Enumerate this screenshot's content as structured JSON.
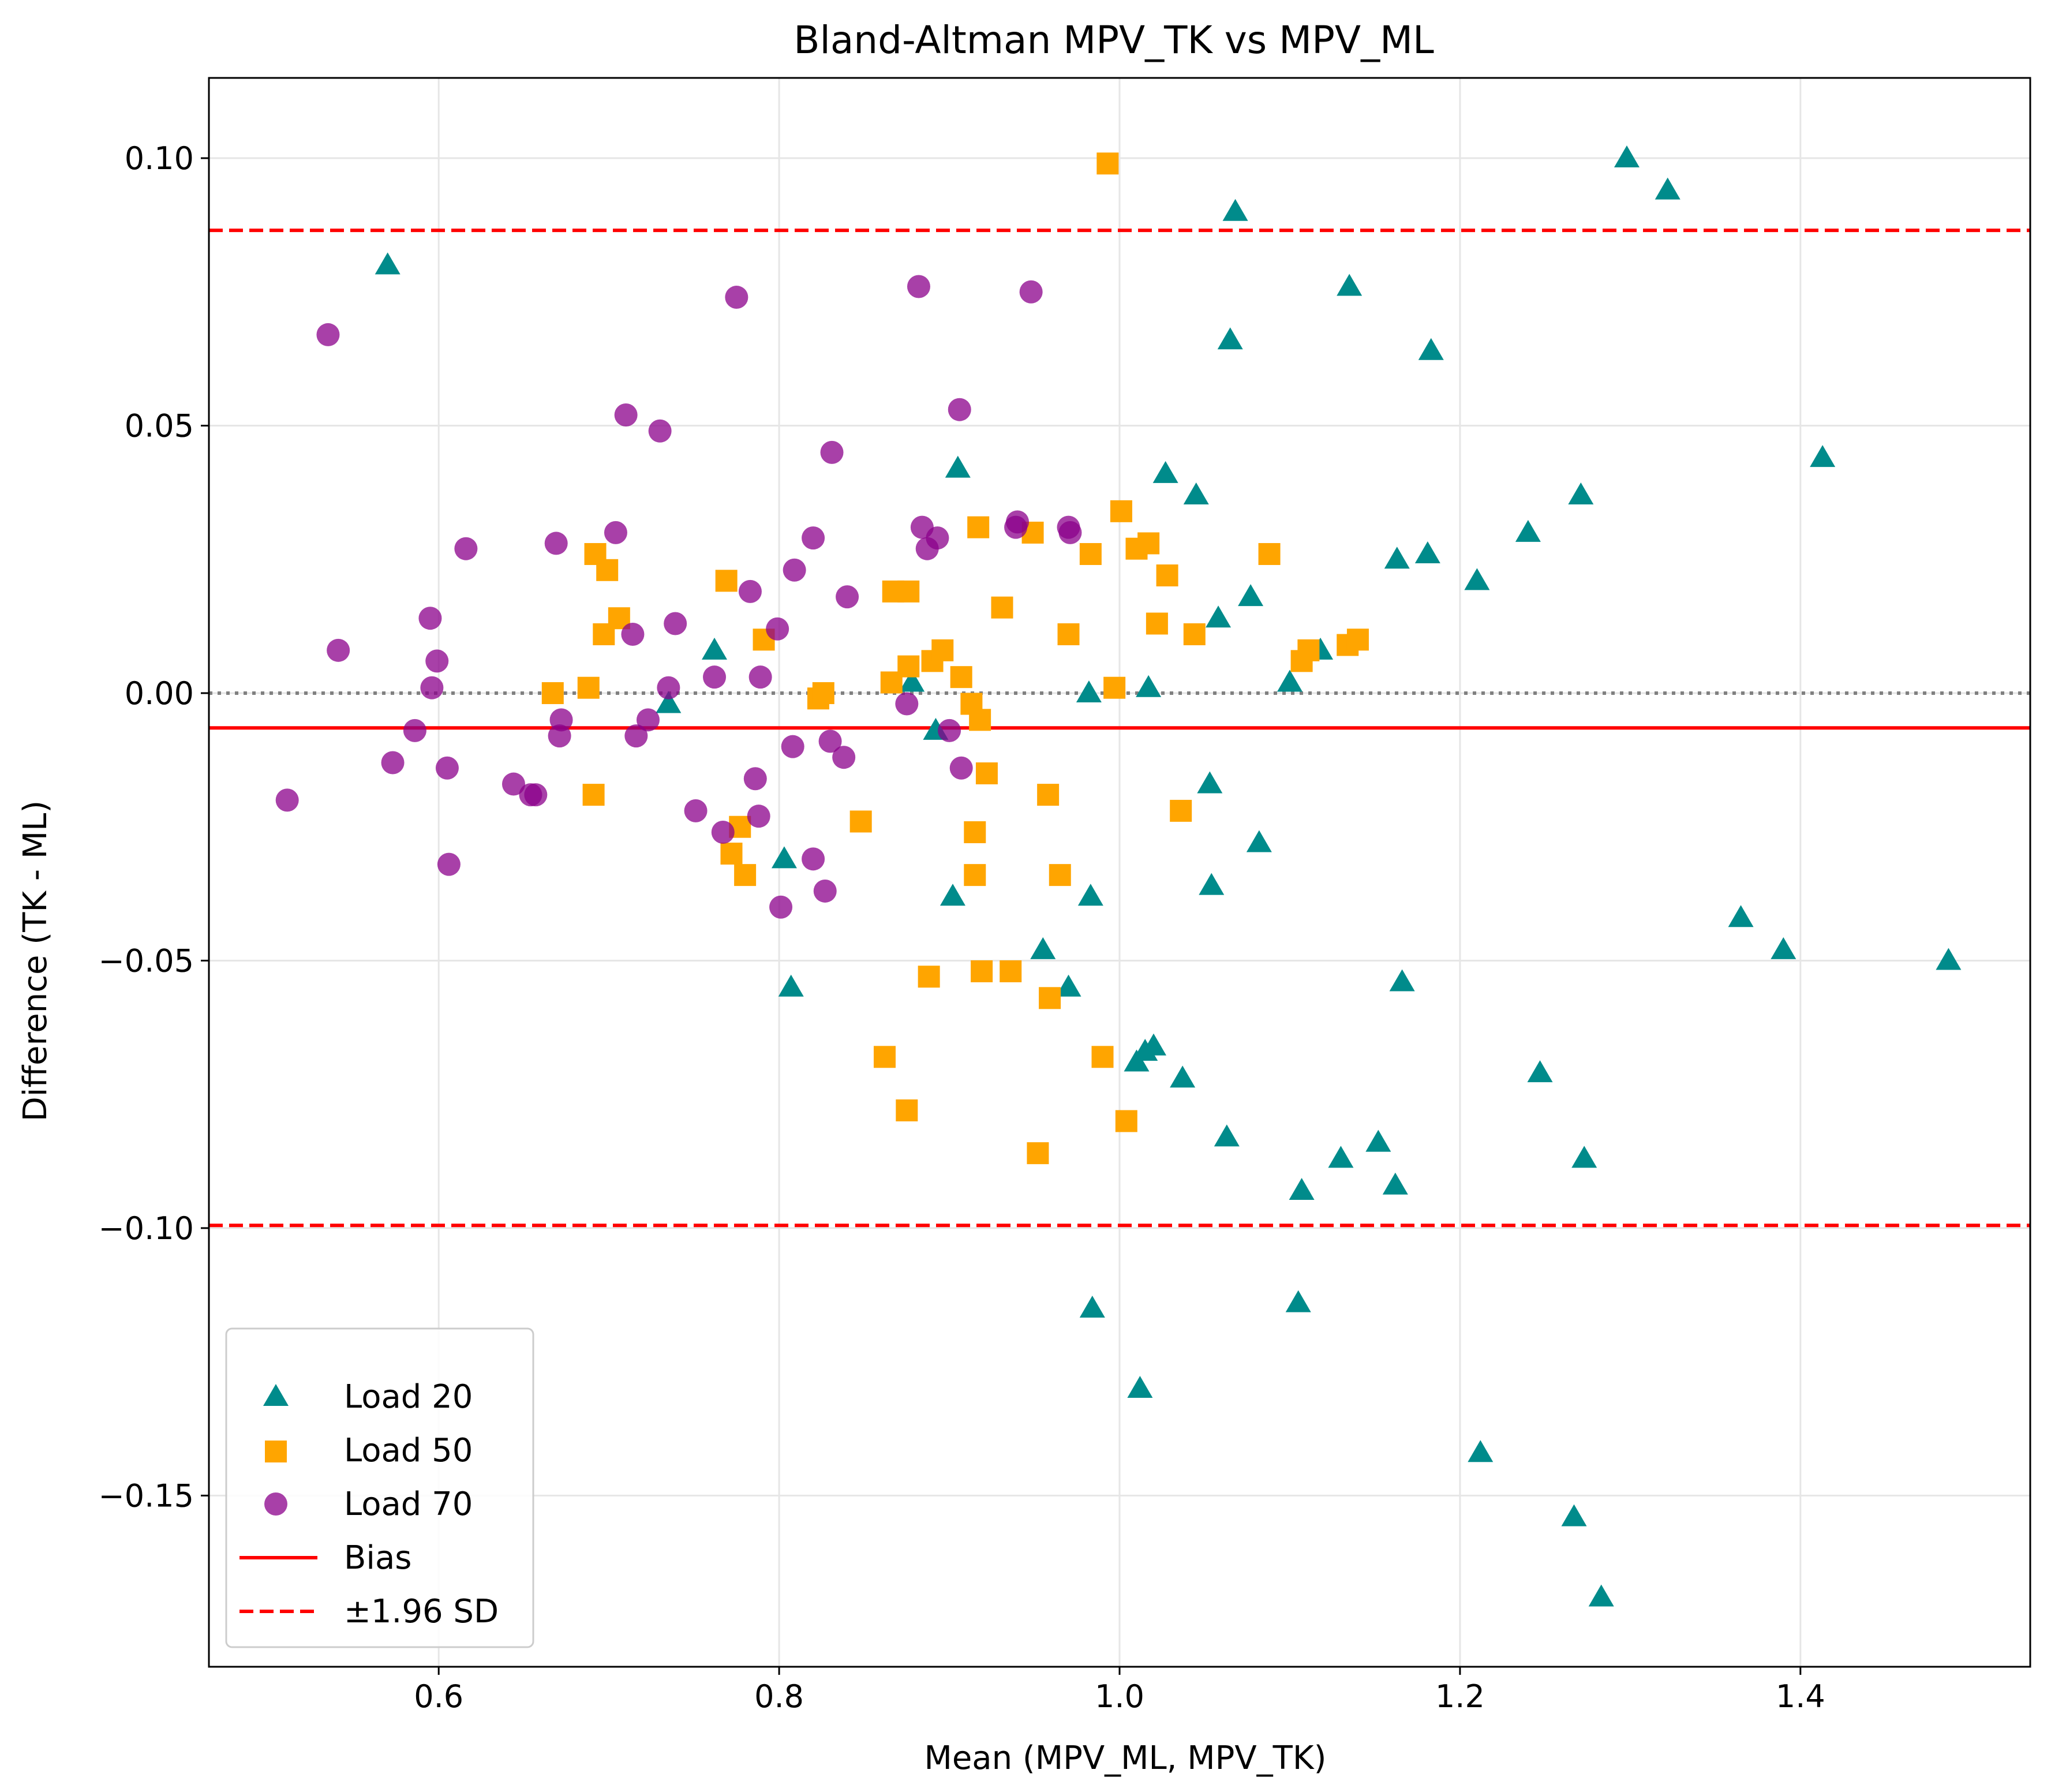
{
  "chart_data": {
    "type": "scatter",
    "title": "Bland-Altman MPV_TK vs MPV_ML",
    "xlabel": "Mean (MPV_ML, MPV_TK)",
    "ylabel": "Difference (TK - ML)",
    "xlim": [
      0.465,
      1.535
    ],
    "ylim": [
      -0.182,
      0.115
    ],
    "xticks": [
      0.6,
      0.8,
      1.0,
      1.2,
      1.4
    ],
    "xtick_labels": [
      "0.6",
      "0.8",
      "1.0",
      "1.2",
      "1.4"
    ],
    "yticks": [
      0.1,
      0.05,
      0.0,
      -0.05,
      -0.1,
      -0.15
    ],
    "ytick_labels": [
      "0.10",
      "0.05",
      "0.00",
      "−0.05",
      "−0.10",
      "−0.15"
    ],
    "grid": true,
    "legend_position": "lower-left",
    "zero_line": 0.0,
    "bias": -0.0065,
    "loa_upper": 0.0865,
    "loa_lower": -0.0995,
    "legend": [
      "Load 20",
      "Load 50",
      "Load 70",
      "Bias",
      "±1.96 SD"
    ],
    "colors": {
      "load20": "#008b8b",
      "load50": "#ffa500",
      "load70": "#8b008b",
      "bias": "#ff0000",
      "zero": "#808080"
    },
    "series": [
      {
        "name": "Load 20",
        "marker": "triangle",
        "points": [
          [
            0.57,
            0.08
          ],
          [
            0.735,
            -0.002
          ],
          [
            0.762,
            0.008
          ],
          [
            0.803,
            -0.031
          ],
          [
            0.807,
            -0.055
          ],
          [
            0.878,
            0.002
          ],
          [
            0.892,
            -0.007
          ],
          [
            0.902,
            -0.038
          ],
          [
            0.905,
            0.042
          ],
          [
            0.955,
            -0.048
          ],
          [
            0.97,
            -0.055
          ],
          [
            0.982,
            0.0
          ],
          [
            0.983,
            -0.038
          ],
          [
            0.984,
            -0.115
          ],
          [
            1.01,
            -0.069
          ],
          [
            1.012,
            -0.13
          ],
          [
            1.015,
            -0.067
          ],
          [
            1.017,
            0.001
          ],
          [
            1.02,
            -0.066
          ],
          [
            1.027,
            0.041
          ],
          [
            1.037,
            -0.072
          ],
          [
            1.045,
            0.037
          ],
          [
            1.053,
            -0.017
          ],
          [
            1.054,
            -0.036
          ],
          [
            1.058,
            0.014
          ],
          [
            1.063,
            -0.083
          ],
          [
            1.065,
            0.066
          ],
          [
            1.068,
            0.09
          ],
          [
            1.077,
            0.018
          ],
          [
            1.082,
            -0.028
          ],
          [
            1.1,
            0.002
          ],
          [
            1.105,
            -0.114
          ],
          [
            1.107,
            -0.093
          ],
          [
            1.118,
            0.008
          ],
          [
            1.13,
            -0.087
          ],
          [
            1.135,
            0.076
          ],
          [
            1.152,
            -0.084
          ],
          [
            1.162,
            -0.092
          ],
          [
            1.163,
            0.025
          ],
          [
            1.166,
            -0.054
          ],
          [
            1.181,
            0.026
          ],
          [
            1.183,
            0.064
          ],
          [
            1.21,
            0.021
          ],
          [
            1.212,
            -0.142
          ],
          [
            1.24,
            0.03
          ],
          [
            1.247,
            -0.071
          ],
          [
            1.267,
            -0.154
          ],
          [
            1.271,
            0.037
          ],
          [
            1.273,
            -0.087
          ],
          [
            1.283,
            -0.169
          ],
          [
            1.298,
            0.1
          ],
          [
            1.322,
            0.094
          ],
          [
            1.365,
            -0.042
          ],
          [
            1.39,
            -0.048
          ],
          [
            1.413,
            0.044
          ],
          [
            1.487,
            -0.05
          ]
        ]
      },
      {
        "name": "Load 50",
        "marker": "square",
        "points": [
          [
            0.667,
            0.0
          ],
          [
            0.688,
            0.001
          ],
          [
            0.691,
            -0.019
          ],
          [
            0.692,
            0.026
          ],
          [
            0.697,
            0.011
          ],
          [
            0.699,
            0.023
          ],
          [
            0.706,
            0.014
          ],
          [
            0.769,
            0.021
          ],
          [
            0.772,
            -0.03
          ],
          [
            0.777,
            -0.025
          ],
          [
            0.78,
            -0.034
          ],
          [
            0.791,
            0.01
          ],
          [
            0.823,
            -0.001
          ],
          [
            0.826,
            0.0
          ],
          [
            0.848,
            -0.024
          ],
          [
            0.862,
            -0.068
          ],
          [
            0.866,
            0.002
          ],
          [
            0.867,
            0.019
          ],
          [
            0.875,
            -0.078
          ],
          [
            0.876,
            0.019
          ],
          [
            0.876,
            0.005
          ],
          [
            0.888,
            -0.053
          ],
          [
            0.89,
            0.006
          ],
          [
            0.896,
            0.008
          ],
          [
            0.907,
            0.003
          ],
          [
            0.913,
            -0.002
          ],
          [
            0.915,
            -0.026
          ],
          [
            0.915,
            -0.034
          ],
          [
            0.917,
            0.031
          ],
          [
            0.918,
            -0.005
          ],
          [
            0.919,
            -0.052
          ],
          [
            0.922,
            -0.015
          ],
          [
            0.931,
            0.016
          ],
          [
            0.936,
            -0.052
          ],
          [
            0.949,
            0.03
          ],
          [
            0.952,
            -0.086
          ],
          [
            0.958,
            -0.019
          ],
          [
            0.959,
            -0.057
          ],
          [
            0.965,
            -0.034
          ],
          [
            0.97,
            0.011
          ],
          [
            0.983,
            0.026
          ],
          [
            0.99,
            -0.068
          ],
          [
            0.993,
            0.099
          ],
          [
            0.997,
            0.001
          ],
          [
            1.001,
            0.034
          ],
          [
            1.004,
            -0.08
          ],
          [
            1.01,
            0.027
          ],
          [
            1.017,
            0.028
          ],
          [
            1.022,
            0.013
          ],
          [
            1.028,
            0.022
          ],
          [
            1.036,
            -0.022
          ],
          [
            1.044,
            0.011
          ],
          [
            1.088,
            0.026
          ],
          [
            1.107,
            0.006
          ],
          [
            1.111,
            0.008
          ],
          [
            1.134,
            0.009
          ],
          [
            1.14,
            0.01
          ]
        ]
      },
      {
        "name": "Load 70",
        "marker": "circle",
        "points": [
          [
            0.511,
            -0.02
          ],
          [
            0.535,
            0.067
          ],
          [
            0.541,
            0.008
          ],
          [
            0.573,
            -0.013
          ],
          [
            0.586,
            -0.007
          ],
          [
            0.595,
            0.014
          ],
          [
            0.596,
            0.001
          ],
          [
            0.599,
            0.006
          ],
          [
            0.605,
            -0.014
          ],
          [
            0.606,
            -0.032
          ],
          [
            0.616,
            0.027
          ],
          [
            0.644,
            -0.017
          ],
          [
            0.654,
            -0.019
          ],
          [
            0.657,
            -0.019
          ],
          [
            0.669,
            0.028
          ],
          [
            0.671,
            -0.008
          ],
          [
            0.672,
            -0.005
          ],
          [
            0.704,
            0.03
          ],
          [
            0.71,
            0.052
          ],
          [
            0.714,
            0.011
          ],
          [
            0.716,
            -0.008
          ],
          [
            0.723,
            -0.005
          ],
          [
            0.73,
            0.049
          ],
          [
            0.735,
            0.001
          ],
          [
            0.739,
            0.013
          ],
          [
            0.751,
            -0.022
          ],
          [
            0.762,
            0.003
          ],
          [
            0.767,
            -0.026
          ],
          [
            0.775,
            0.074
          ],
          [
            0.783,
            0.019
          ],
          [
            0.786,
            -0.016
          ],
          [
            0.788,
            -0.023
          ],
          [
            0.789,
            0.003
          ],
          [
            0.799,
            0.012
          ],
          [
            0.801,
            -0.04
          ],
          [
            0.808,
            -0.01
          ],
          [
            0.809,
            0.023
          ],
          [
            0.82,
            0.029
          ],
          [
            0.82,
            -0.031
          ],
          [
            0.827,
            -0.037
          ],
          [
            0.83,
            -0.009
          ],
          [
            0.831,
            0.045
          ],
          [
            0.838,
            -0.012
          ],
          [
            0.84,
            0.018
          ],
          [
            0.875,
            -0.002
          ],
          [
            0.882,
            0.076
          ],
          [
            0.884,
            0.031
          ],
          [
            0.887,
            0.027
          ],
          [
            0.893,
            0.029
          ],
          [
            0.9,
            -0.007
          ],
          [
            0.906,
            0.053
          ],
          [
            0.907,
            -0.014
          ],
          [
            0.939,
            0.031
          ],
          [
            0.94,
            0.032
          ],
          [
            0.948,
            0.075
          ],
          [
            0.97,
            0.031
          ],
          [
            0.971,
            0.03
          ]
        ]
      }
    ]
  }
}
